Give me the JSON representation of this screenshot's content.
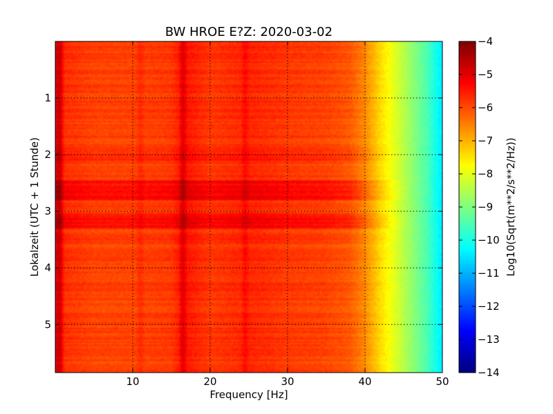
{
  "chart_data": {
    "type": "heatmap",
    "title": "BW HROE E?Z: 2020-03-02",
    "xlabel": "Frequency [Hz]",
    "ylabel": "Lokalzeit (UTC + 1 Stunde)",
    "xlim": [
      0,
      50
    ],
    "ylim": [
      5.85,
      0.0
    ],
    "xticks": [
      10,
      20,
      30,
      40,
      50
    ],
    "yticks": [
      1,
      2,
      3,
      4,
      5
    ],
    "grid": true,
    "colormap": "jet",
    "colorbar": {
      "label": "Log10(Sqrt(m**2/s**2/Hz))",
      "range": [
        -14,
        -4
      ],
      "ticks": [
        -4,
        -5,
        -6,
        -7,
        -8,
        -9,
        -10,
        -11,
        -12,
        -13,
        -14
      ]
    },
    "description_profile": {
      "frequency_hz": [
        0,
        0.5,
        1,
        5,
        10,
        15,
        16.5,
        20,
        25,
        30,
        35,
        38,
        40,
        42,
        44,
        46,
        48,
        50
      ],
      "log_amplitude": [
        -5.0,
        -5.4,
        -5.7,
        -5.9,
        -5.9,
        -5.8,
        -5.4,
        -5.8,
        -5.6,
        -5.8,
        -5.9,
        -6.1,
        -6.6,
        -7.4,
        -8.1,
        -8.8,
        -9.5,
        -10.5
      ]
    },
    "enhanced_time_bands": [
      {
        "from": 2.45,
        "to": 2.8,
        "log_amplitude_boost": 0.5
      },
      {
        "from": 3.05,
        "to": 3.3,
        "log_amplitude_boost": 0.5
      },
      {
        "from": 1.85,
        "to": 2.1,
        "log_amplitude_boost": 0.2
      }
    ],
    "enhanced_frequency_lines": [
      {
        "frequency": 0.6,
        "log_amplitude_boost": 0.8
      },
      {
        "frequency": 11.0,
        "log_amplitude_boost": 0.25
      },
      {
        "frequency": 16.5,
        "log_amplitude_boost": 0.5
      },
      {
        "frequency": 24.5,
        "log_amplitude_boost": 0.3
      }
    ]
  }
}
